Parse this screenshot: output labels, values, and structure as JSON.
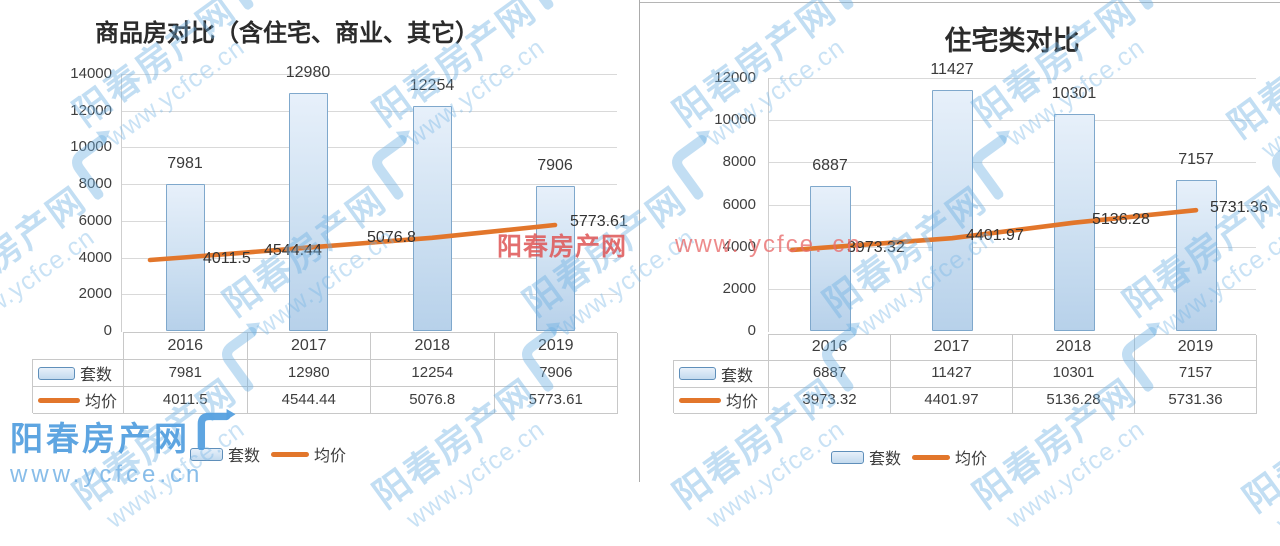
{
  "page": {
    "watermark": {
      "cn": "阳春房产网",
      "url": "www.ycfce.cn"
    },
    "red_watermark": {
      "cn": "阳春房产网",
      "url": "www. ycfce. cn"
    },
    "branding": {
      "cn": "阳春房产网",
      "url": "www.ycfce.cn"
    }
  },
  "colors": {
    "bar_fill_light": "#e7f0fa",
    "bar_fill_dark": "#b7d1ea",
    "bar_border": "#7fa8cc",
    "line_orange": "#e2762b",
    "gridline": "#d9d9d9",
    "table_border": "#c8c8c8",
    "text": "#3d3d3d",
    "watermark_blue": "#6eb0e2",
    "watermark_red": "#de5555"
  },
  "chart_data": [
    {
      "type": "bar",
      "subtype": "bar+line combo",
      "title": "商品房对比（含住宅、商业、其它）",
      "categories": [
        "2016",
        "2017",
        "2018",
        "2019"
      ],
      "series": [
        {
          "name": "套数",
          "kind": "bar",
          "values": [
            7981,
            12980,
            12254,
            7906
          ],
          "labels": [
            "7981",
            "12980",
            "12254",
            "7906"
          ]
        },
        {
          "name": "均价",
          "kind": "line",
          "values": [
            4011.5,
            4544.44,
            5076.8,
            5773.61
          ],
          "labels": [
            "4011.5",
            "4544.44",
            "5076.8",
            "5773.61"
          ]
        }
      ],
      "ylim": [
        0,
        14000
      ],
      "ystep": 2000,
      "yticks": [
        "14000",
        "12000",
        "10000",
        "8000",
        "6000",
        "4000",
        "2000",
        "0"
      ],
      "grid": true,
      "legend_position": "bottom",
      "data_table": true
    },
    {
      "type": "bar",
      "subtype": "bar+line combo",
      "title": "住宅类对比",
      "categories": [
        "2016",
        "2017",
        "2018",
        "2019"
      ],
      "series": [
        {
          "name": "套数",
          "kind": "bar",
          "values": [
            6887,
            11427,
            10301,
            7157
          ],
          "labels": [
            "6887",
            "11427",
            "10301",
            "7157"
          ]
        },
        {
          "name": "均价",
          "kind": "line",
          "values": [
            3973.32,
            4401.97,
            5136.28,
            5731.36
          ],
          "labels": [
            "3973.32",
            "4401.97",
            "5136.28",
            "5731.36"
          ]
        }
      ],
      "ylim": [
        0,
        12000
      ],
      "ystep": 2000,
      "yticks": [
        "12000",
        "10000",
        "8000",
        "6000",
        "4000",
        "2000",
        "0"
      ],
      "grid": true,
      "legend_position": "bottom",
      "data_table": true
    }
  ]
}
